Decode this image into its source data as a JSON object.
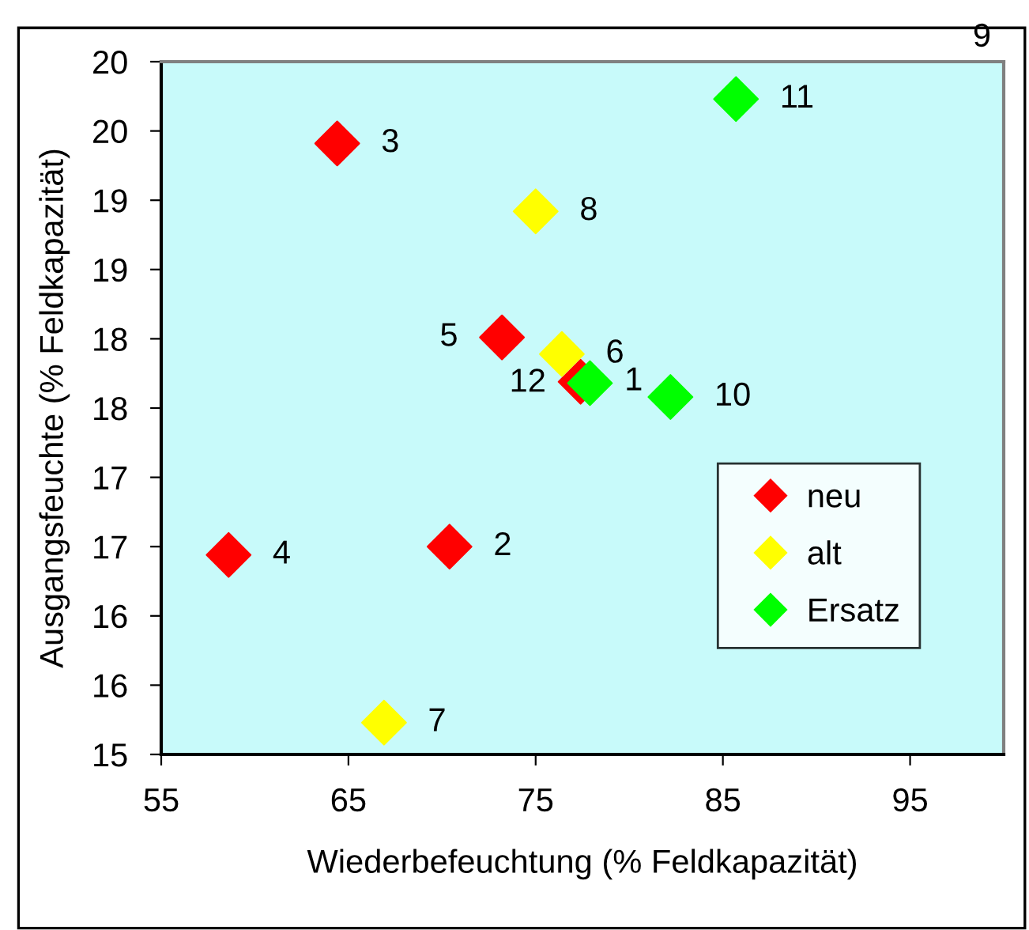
{
  "chart_data": {
    "type": "scatter",
    "xlabel": "Wiederbefeuchtung (% Feldkapazität)",
    "ylabel": "Ausgangsfeuchte (% Feldkapazität)",
    "series": [
      {
        "name": "neu",
        "color": "#ff0000",
        "x": [
          77.4,
          70.4,
          64.4,
          58.6,
          73.2
        ],
        "values": [
          17.69,
          16.5,
          19.41,
          16.44,
          18.01
        ]
      },
      {
        "name": "alt",
        "color": "#ffff00",
        "x": [
          76.4,
          66.9,
          75.0
        ],
        "values": [
          17.89,
          15.23,
          18.92
        ]
      },
      {
        "name": "Ersatz",
        "color": "#00ff00",
        "x": [
          82.2,
          85.7,
          77.9
        ],
        "values": [
          17.58,
          19.73,
          17.68
        ]
      }
    ],
    "annotations": [
      {
        "text": "1",
        "x": 77.4,
        "y": 17.69
      },
      {
        "text": "2",
        "x": 70.4,
        "y": 16.5
      },
      {
        "text": "3",
        "x": 64.4,
        "y": 19.41
      },
      {
        "text": "4",
        "x": 58.6,
        "y": 16.44
      },
      {
        "text": "5",
        "x": 73.2,
        "y": 18.01
      },
      {
        "text": "6",
        "x": 76.4,
        "y": 17.89
      },
      {
        "text": "7",
        "x": 66.9,
        "y": 15.23
      },
      {
        "text": "8",
        "x": 75.0,
        "y": 18.92
      },
      "9",
      {
        "text": "10",
        "x": 82.2,
        "y": 17.58
      },
      {
        "text": "11",
        "x": 85.7,
        "y": 19.73
      },
      {
        "text": "12",
        "x": 77.9,
        "y": 17.68
      }
    ],
    "xlim": [
      55,
      100
    ],
    "xticks": [
      55,
      65,
      75,
      85,
      95
    ],
    "ylim": [
      15,
      20
    ],
    "yticks": [
      15,
      {
        "value": 15.5,
        "label": "16"
      },
      16,
      {
        "value": 16.5,
        "label": "17"
      },
      17,
      {
        "value": 17.5,
        "label": "18"
      },
      18,
      {
        "value": 18.5,
        "label": "19"
      },
      19,
      {
        "value": 19.5,
        "label": "20"
      },
      20
    ],
    "marker": "diamond",
    "grid": false,
    "legend": "bottom right"
  }
}
